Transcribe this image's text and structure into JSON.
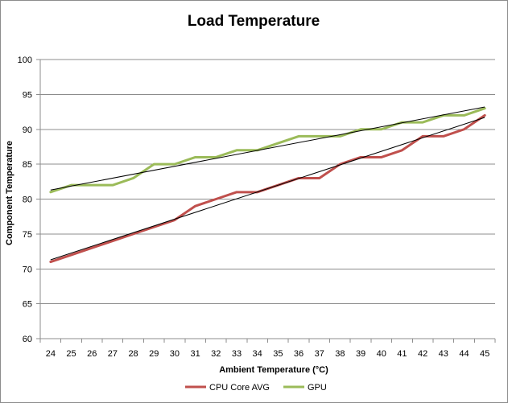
{
  "chart_data": {
    "type": "line",
    "title": "Load Temperature",
    "xlabel": "Ambient Temperature (°C)",
    "ylabel": "Component Temperature",
    "categories": [
      24,
      25,
      26,
      27,
      28,
      29,
      30,
      31,
      32,
      33,
      34,
      35,
      36,
      37,
      38,
      39,
      40,
      41,
      42,
      43,
      44,
      45
    ],
    "ylim": [
      60,
      100
    ],
    "yticks": [
      60,
      65,
      70,
      75,
      80,
      85,
      90,
      95,
      100
    ],
    "grid": true,
    "legend_position": "bottom",
    "series": [
      {
        "name": "CPU Core AVG",
        "color": "#c0504d",
        "values": [
          71,
          72,
          73,
          74,
          75,
          76,
          77,
          79,
          80,
          81,
          81,
          82,
          83,
          83,
          85,
          86,
          86,
          87,
          89,
          89,
          90,
          92
        ]
      },
      {
        "name": "GPU",
        "color": "#9bbb59",
        "values": [
          81,
          82,
          82,
          82,
          83,
          85,
          85,
          86,
          86,
          87,
          87,
          88,
          89,
          89,
          89,
          90,
          90,
          91,
          91,
          92,
          92,
          93
        ]
      }
    ],
    "trendlines": [
      {
        "series": "CPU Core AVG",
        "color": "#000000",
        "start": 71.3,
        "end": 91.7
      },
      {
        "series": "GPU",
        "color": "#000000",
        "start": 81.3,
        "end": 93.2
      }
    ]
  }
}
